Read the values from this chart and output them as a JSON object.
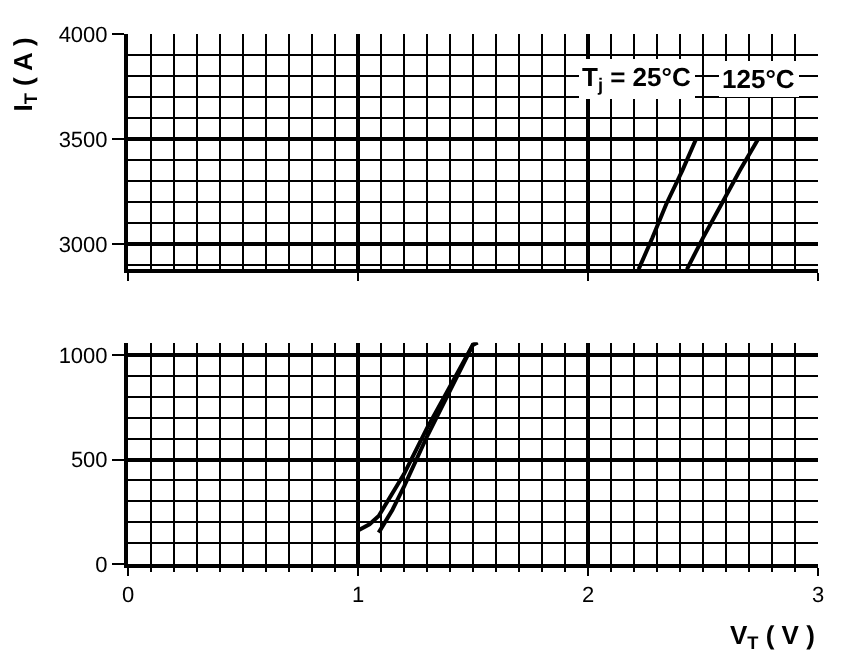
{
  "chart_data": [
    {
      "type": "line",
      "ylabel": "I$_{T}$ ( A )",
      "xlim": [
        0,
        3
      ],
      "xticks": [
        0,
        1,
        2,
        3
      ],
      "ylim": [
        2880,
        4000
      ],
      "yticks": [
        3000,
        3500,
        4000
      ],
      "tick_labels": "y",
      "grid": true,
      "legend": false,
      "marker": "none",
      "line_style": "solid",
      "series": [
        {
          "name": "T$_{j}$ = 25°C",
          "color": "#000000",
          "x": [
            2.22,
            2.28,
            2.34,
            2.41,
            2.47
          ],
          "values": [
            2880,
            3030,
            3190,
            3350,
            3500
          ]
        },
        {
          "name": "125°C",
          "color": "#000000",
          "x": [
            2.43,
            2.5,
            2.58,
            2.66,
            2.74
          ],
          "values": [
            2880,
            3030,
            3190,
            3350,
            3500
          ]
        }
      ]
    },
    {
      "type": "line",
      "xlabel": "V$_{T}$ ( V )",
      "xlim": [
        0,
        3
      ],
      "xticks": [
        0,
        1,
        2,
        3
      ],
      "ylim": [
        0,
        1060
      ],
      "yticks": [
        0,
        500,
        1000
      ],
      "grid": true,
      "legend": false,
      "marker": "none",
      "line_style": "solid",
      "series": [
        {
          "color": "#000000",
          "x": [
            1.09,
            1.15,
            1.2,
            1.3,
            1.4,
            1.5,
            1.52
          ],
          "values": [
            150,
            260,
            370,
            610,
            830,
            1050,
            1060
          ]
        },
        {
          "color": "#000000",
          "x": [
            1.0,
            1.05,
            1.09,
            1.2,
            1.3,
            1.4,
            1.5,
            1.52
          ],
          "values": [
            160,
            190,
            230,
            430,
            650,
            850,
            1050,
            1060
          ]
        }
      ]
    }
  ]
}
